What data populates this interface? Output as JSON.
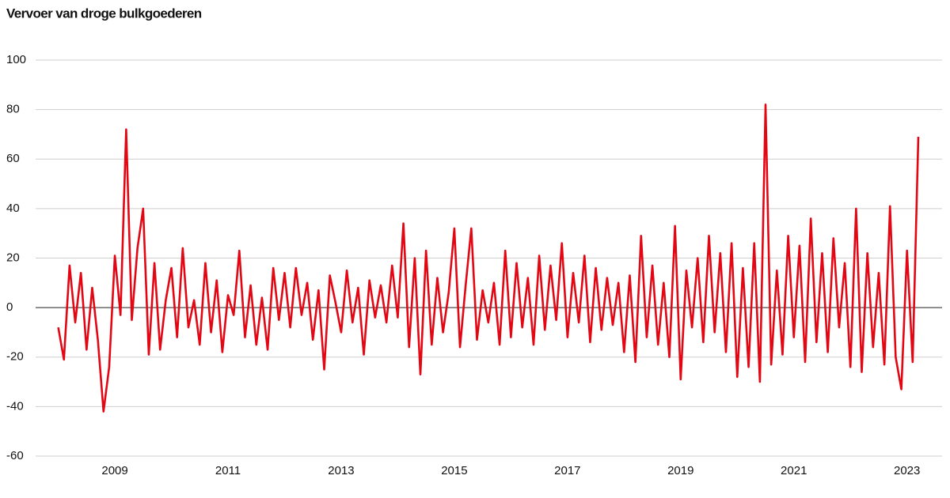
{
  "chart_data": {
    "type": "line",
    "title": "Vervoer van droge bulkgoederen",
    "x": [
      2008.0,
      2008.1,
      2008.2,
      2008.3,
      2008.4,
      2008.5,
      2008.6,
      2008.7,
      2008.8,
      2008.9,
      2009.0,
      2009.1,
      2009.2,
      2009.3,
      2009.4,
      2009.5,
      2009.6,
      2009.7,
      2009.8,
      2009.9,
      2010.0,
      2010.1,
      2010.2,
      2010.3,
      2010.4,
      2010.5,
      2010.6,
      2010.7,
      2010.8,
      2010.9,
      2011.0,
      2011.1,
      2011.2,
      2011.3,
      2011.4,
      2011.5,
      2011.6,
      2011.7,
      2011.8,
      2011.9,
      2012.0,
      2012.1,
      2012.2,
      2012.3,
      2012.4,
      2012.5,
      2012.6,
      2012.7,
      2012.8,
      2012.9,
      2013.0,
      2013.1,
      2013.2,
      2013.3,
      2013.4,
      2013.5,
      2013.6,
      2013.7,
      2013.8,
      2013.9,
      2014.0,
      2014.1,
      2014.2,
      2014.3,
      2014.4,
      2014.5,
      2014.6,
      2014.7,
      2014.8,
      2014.9,
      2015.0,
      2015.1,
      2015.2,
      2015.3,
      2015.4,
      2015.5,
      2015.6,
      2015.7,
      2015.8,
      2015.9,
      2016.0,
      2016.1,
      2016.2,
      2016.3,
      2016.4,
      2016.5,
      2016.6,
      2016.7,
      2016.8,
      2016.9,
      2017.0,
      2017.1,
      2017.2,
      2017.3,
      2017.4,
      2017.5,
      2017.6,
      2017.7,
      2017.8,
      2017.9,
      2018.0,
      2018.1,
      2018.2,
      2018.3,
      2018.4,
      2018.5,
      2018.6,
      2018.7,
      2018.8,
      2018.9,
      2019.0,
      2019.1,
      2019.2,
      2019.3,
      2019.4,
      2019.5,
      2019.6,
      2019.7,
      2019.8,
      2019.9,
      2020.0,
      2020.1,
      2020.2,
      2020.3,
      2020.4,
      2020.5,
      2020.6,
      2020.7,
      2020.8,
      2020.9,
      2021.0,
      2021.1,
      2021.2,
      2021.3,
      2021.4,
      2021.5,
      2021.6,
      2021.7,
      2021.8,
      2021.9,
      2022.0,
      2022.1,
      2022.2,
      2022.3,
      2022.4,
      2022.5,
      2022.6,
      2022.7,
      2022.8,
      2022.9,
      2023.0,
      2023.1,
      2023.2
    ],
    "values": [
      -8,
      -21,
      17,
      -6,
      14,
      -17,
      8,
      -13,
      -42,
      -24,
      21,
      -3,
      72,
      -5,
      24,
      40,
      -19,
      18,
      -17,
      3,
      16,
      -12,
      24,
      -8,
      3,
      -15,
      18,
      -10,
      11,
      -18,
      5,
      -3,
      23,
      -12,
      9,
      -15,
      4,
      -17,
      16,
      -5,
      14,
      -8,
      16,
      -3,
      10,
      -13,
      7,
      -25,
      13,
      2,
      -10,
      15,
      -6,
      8,
      -19,
      11,
      -4,
      9,
      -6,
      17,
      -4,
      34,
      -16,
      20,
      -27,
      23,
      -15,
      12,
      -10,
      6,
      32,
      -16,
      9,
      32,
      -13,
      7,
      -6,
      10,
      -15,
      23,
      -12,
      18,
      -8,
      12,
      -15,
      21,
      -9,
      17,
      -5,
      26,
      -12,
      14,
      -6,
      21,
      -14,
      16,
      -9,
      12,
      -7,
      10,
      -18,
      13,
      -22,
      29,
      -12,
      17,
      -15,
      10,
      -20,
      33,
      -29,
      15,
      -8,
      20,
      -14,
      29,
      -10,
      22,
      -18,
      26,
      -28,
      16,
      -24,
      26,
      -30,
      82,
      -23,
      15,
      -19,
      29,
      -12,
      25,
      -22,
      36,
      -14,
      22,
      -18,
      28,
      -8,
      18,
      -24,
      40,
      -26,
      22,
      -16,
      14,
      -23,
      41,
      -20,
      -33,
      23,
      -22,
      69
    ],
    "color": "#e30613",
    "xlim": [
      2007.6,
      2023.62
    ],
    "xticks": [
      2009,
      2011,
      2013,
      2015,
      2017,
      2019,
      2021,
      2023
    ],
    "ylim": [
      -60,
      100
    ],
    "yticks": [
      -60,
      -40,
      -20,
      0,
      20,
      40,
      60,
      80,
      100
    ],
    "grid": true
  }
}
